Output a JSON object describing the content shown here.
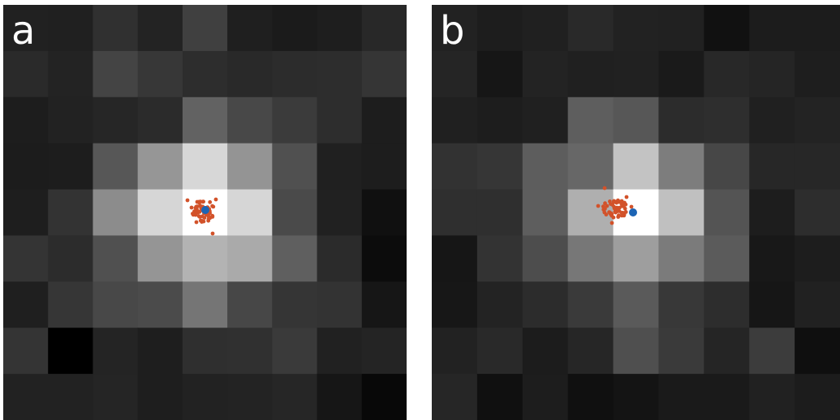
{
  "panels": [
    {
      "label": "a",
      "grid": [
        [
          33,
          32,
          48,
          35,
          64,
          31,
          27,
          30,
          40
        ],
        [
          42,
          35,
          68,
          55,
          45,
          41,
          44,
          45,
          53
        ],
        [
          29,
          34,
          38,
          43,
          98,
          72,
          59,
          45,
          29
        ],
        [
          28,
          29,
          87,
          150,
          215,
          148,
          80,
          32,
          29
        ],
        [
          30,
          51,
          140,
          214,
          255,
          214,
          74,
          33,
          16
        ],
        [
          52,
          44,
          80,
          149,
          179,
          170,
          95,
          43,
          12
        ],
        [
          31,
          54,
          72,
          75,
          117,
          71,
          53,
          51,
          22
        ],
        [
          52,
          0,
          36,
          30,
          47,
          48,
          58,
          33,
          36
        ],
        [
          34,
          34,
          37,
          30,
          34,
          35,
          38,
          22,
          8
        ]
      ],
      "marker_colors": {
        "scatter": "#d2522a",
        "center": "#1c64b4"
      }
    },
    {
      "label": "b",
      "grid": [
        [
          34,
          29,
          32,
          41,
          34,
          33,
          17,
          28,
          28
        ],
        [
          37,
          22,
          35,
          32,
          33,
          26,
          40,
          37,
          30
        ],
        [
          32,
          29,
          32,
          94,
          87,
          44,
          46,
          32,
          35
        ],
        [
          50,
          54,
          93,
          103,
          195,
          125,
          71,
          39,
          39
        ],
        [
          47,
          47,
          94,
          175,
          255,
          192,
          84,
          29,
          45
        ],
        [
          22,
          51,
          77,
          119,
          158,
          123,
          91,
          24,
          29
        ],
        [
          23,
          35,
          44,
          58,
          90,
          56,
          45,
          22,
          33
        ],
        [
          34,
          41,
          28,
          38,
          79,
          58,
          37,
          60,
          15
        ],
        [
          38,
          16,
          29,
          16,
          20,
          26,
          26,
          33,
          28
        ]
      ],
      "marker_colors": {
        "scatter": "#d2522a",
        "center": "#1c64b4"
      }
    }
  ]
}
